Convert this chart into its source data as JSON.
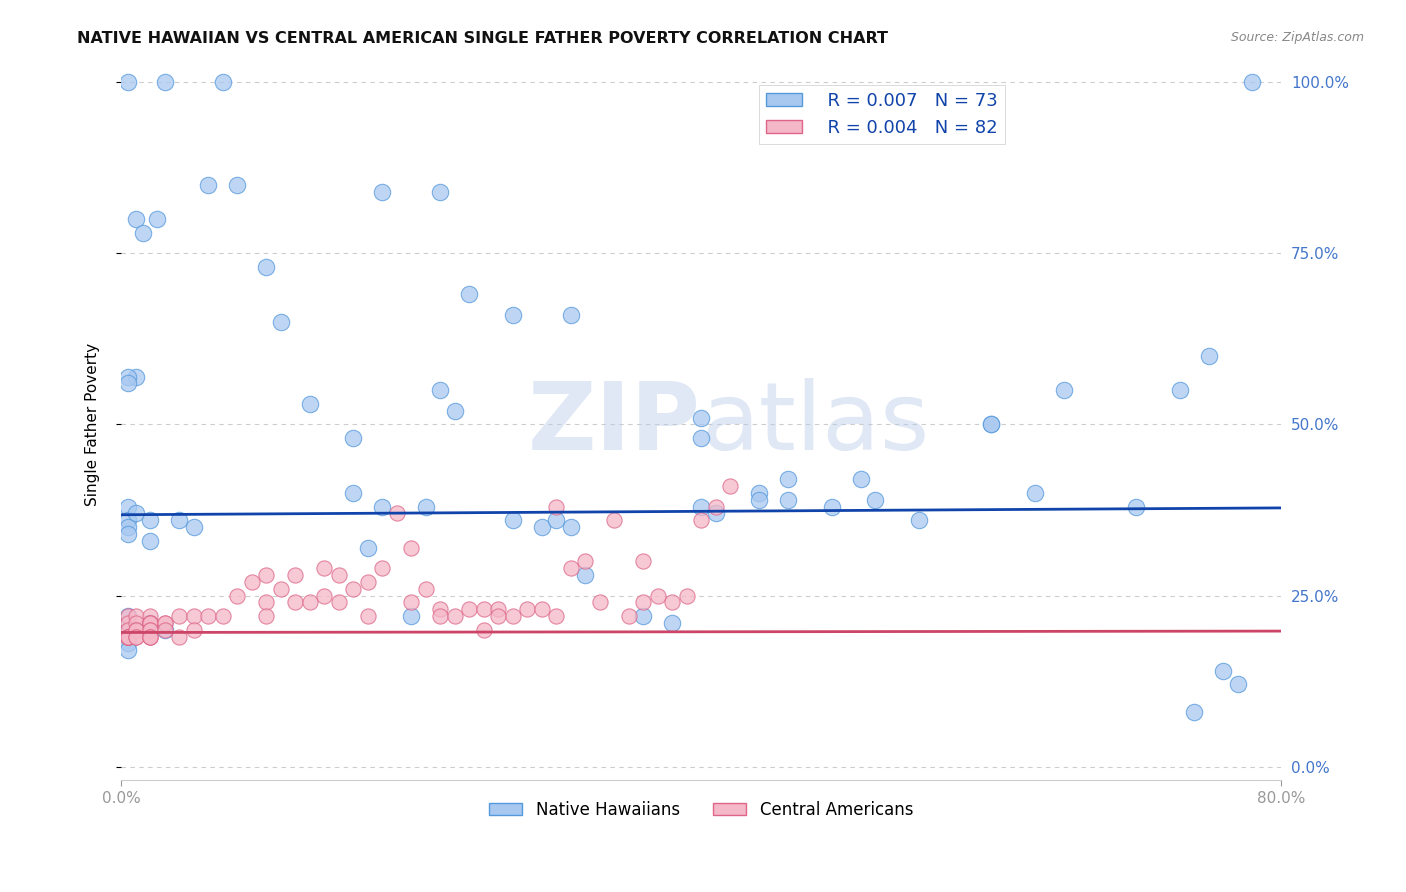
{
  "title": "NATIVE HAWAIIAN VS CENTRAL AMERICAN SINGLE FATHER POVERTY CORRELATION CHART",
  "source": "Source: ZipAtlas.com",
  "ylabel": "Single Father Poverty",
  "xlim": [
    0.0,
    0.8
  ],
  "ylim": [
    -0.02,
    1.02
  ],
  "legend_r1": "R = 0.007",
  "legend_n1": "N = 73",
  "legend_r2": "R = 0.004",
  "legend_n2": "N = 82",
  "blue_color": "#a8c8f0",
  "blue_edge": "#5599dd",
  "pink_color": "#f5b8c8",
  "pink_edge": "#dd6688",
  "trend_blue": "#1144aa",
  "trend_pink": "#cc4466",
  "watermark_color": "#dde8f5",
  "title_color": "#111111",
  "source_color": "#888888",
  "right_tick_color": "#4477cc",
  "blue_trend_y0": 0.368,
  "blue_trend_y1": 0.378,
  "pink_trend_y0": 0.196,
  "pink_trend_y1": 0.198,
  "native_hawaiian_x": [
    0.005,
    0.03,
    0.07,
    0.01,
    0.015,
    0.025,
    0.01,
    0.005,
    0.005,
    0.18,
    0.22,
    0.24,
    0.27,
    0.31,
    0.4,
    0.4,
    0.44,
    0.46,
    0.51,
    0.55,
    0.6,
    0.6,
    0.63,
    0.65,
    0.7,
    0.73,
    0.75,
    0.78,
    0.005,
    0.005,
    0.005,
    0.005,
    0.005,
    0.005,
    0.005,
    0.005,
    0.005,
    0.01,
    0.02,
    0.02,
    0.02,
    0.03,
    0.04,
    0.05,
    0.06,
    0.08,
    0.1,
    0.11,
    0.13,
    0.16,
    0.16,
    0.17,
    0.18,
    0.2,
    0.21,
    0.22,
    0.23,
    0.27,
    0.29,
    0.3,
    0.31,
    0.32,
    0.36,
    0.38,
    0.4,
    0.41,
    0.44,
    0.46,
    0.49,
    0.52,
    0.74,
    0.76,
    0.77
  ],
  "native_hawaiian_y": [
    1.0,
    1.0,
    1.0,
    0.8,
    0.78,
    0.8,
    0.57,
    0.57,
    0.56,
    0.84,
    0.84,
    0.69,
    0.66,
    0.66,
    0.51,
    0.48,
    0.4,
    0.42,
    0.42,
    0.36,
    0.5,
    0.5,
    0.4,
    0.55,
    0.38,
    0.55,
    0.6,
    1.0,
    0.38,
    0.36,
    0.35,
    0.34,
    0.22,
    0.2,
    0.19,
    0.18,
    0.17,
    0.37,
    0.36,
    0.33,
    0.21,
    0.2,
    0.36,
    0.35,
    0.85,
    0.85,
    0.73,
    0.65,
    0.53,
    0.48,
    0.4,
    0.32,
    0.38,
    0.22,
    0.38,
    0.55,
    0.52,
    0.36,
    0.35,
    0.36,
    0.35,
    0.28,
    0.22,
    0.21,
    0.38,
    0.37,
    0.39,
    0.39,
    0.38,
    0.39,
    0.08,
    0.14,
    0.12
  ],
  "central_american_x": [
    0.005,
    0.005,
    0.005,
    0.005,
    0.005,
    0.005,
    0.005,
    0.005,
    0.005,
    0.005,
    0.005,
    0.01,
    0.01,
    0.01,
    0.01,
    0.01,
    0.01,
    0.02,
    0.02,
    0.02,
    0.02,
    0.02,
    0.02,
    0.02,
    0.02,
    0.02,
    0.03,
    0.03,
    0.03,
    0.04,
    0.04,
    0.05,
    0.05,
    0.06,
    0.07,
    0.08,
    0.09,
    0.1,
    0.1,
    0.1,
    0.11,
    0.12,
    0.12,
    0.13,
    0.14,
    0.14,
    0.15,
    0.15,
    0.16,
    0.17,
    0.17,
    0.18,
    0.19,
    0.2,
    0.2,
    0.21,
    0.22,
    0.22,
    0.23,
    0.24,
    0.25,
    0.25,
    0.26,
    0.26,
    0.27,
    0.28,
    0.29,
    0.3,
    0.3,
    0.31,
    0.32,
    0.33,
    0.34,
    0.35,
    0.36,
    0.36,
    0.37,
    0.38,
    0.39,
    0.4,
    0.41,
    0.42
  ],
  "central_american_y": [
    0.22,
    0.21,
    0.2,
    0.19,
    0.19,
    0.19,
    0.19,
    0.19,
    0.19,
    0.19,
    0.19,
    0.22,
    0.21,
    0.2,
    0.2,
    0.19,
    0.19,
    0.22,
    0.21,
    0.21,
    0.21,
    0.2,
    0.2,
    0.19,
    0.19,
    0.19,
    0.21,
    0.21,
    0.2,
    0.22,
    0.19,
    0.22,
    0.2,
    0.22,
    0.22,
    0.25,
    0.27,
    0.28,
    0.24,
    0.22,
    0.26,
    0.28,
    0.24,
    0.24,
    0.29,
    0.25,
    0.28,
    0.24,
    0.26,
    0.27,
    0.22,
    0.29,
    0.37,
    0.32,
    0.24,
    0.26,
    0.23,
    0.22,
    0.22,
    0.23,
    0.23,
    0.2,
    0.23,
    0.22,
    0.22,
    0.23,
    0.23,
    0.38,
    0.22,
    0.29,
    0.3,
    0.24,
    0.36,
    0.22,
    0.24,
    0.3,
    0.25,
    0.24,
    0.25,
    0.36,
    0.38,
    0.41
  ]
}
